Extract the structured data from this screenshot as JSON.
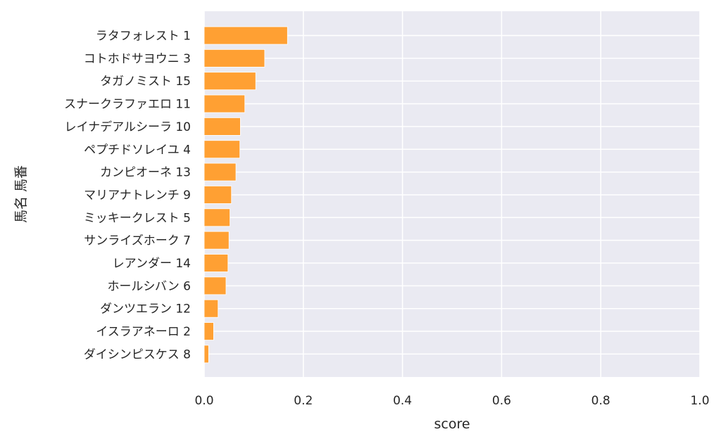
{
  "chart_data": {
    "type": "bar",
    "orientation": "horizontal",
    "categories": [
      "ラタフォレスト 1",
      "コトホドサヨウニ 3",
      "タガノミスト 15",
      "スナークラファエロ 11",
      "レイナデアルシーラ 10",
      "ペプチドソレイユ 4",
      "カンピオーネ 13",
      "マリアナトレンチ 9",
      "ミッキークレスト 5",
      "サンライズホーク 7",
      "レアンダー 14",
      "ホールシバン 6",
      "ダンツエラン 12",
      "イスラアネーロ 2",
      "ダイシンピスケス 8"
    ],
    "values": [
      0.168,
      0.122,
      0.104,
      0.082,
      0.073,
      0.072,
      0.064,
      0.055,
      0.052,
      0.05,
      0.048,
      0.044,
      0.028,
      0.019,
      0.009
    ],
    "xlabel": "score",
    "ylabel": "馬名 馬番",
    "xlim": [
      0.0,
      1.0
    ],
    "xticks": [
      "0.0",
      "0.2",
      "0.4",
      "0.6",
      "0.8",
      "1.0"
    ],
    "grid": true,
    "bar_color": "#ffa033",
    "background_color": "#eaeaf2"
  }
}
